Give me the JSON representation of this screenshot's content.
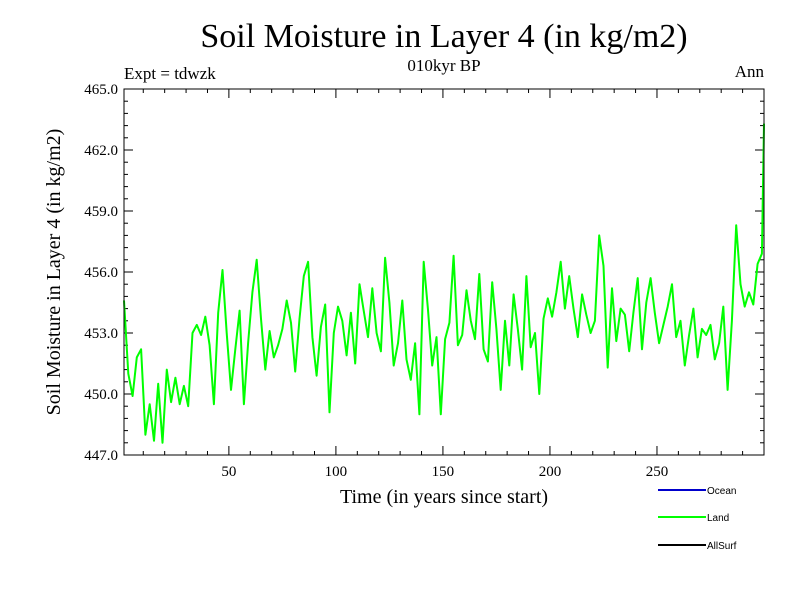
{
  "chart_data": {
    "type": "line",
    "title": "Soil Moisture in Layer 4 (in kg/m2)",
    "subtitle": "010kyr BP",
    "left_note": "Expt = tdwzk",
    "right_note": "Ann",
    "xlabel": "Time (in years since start)",
    "ylabel": "Soil Moisture in Layer 4 (in kg/m2)",
    "xlim": [
      1,
      300
    ],
    "ylim": [
      447.0,
      465.0
    ],
    "xticks": [
      50,
      100,
      150,
      200,
      250
    ],
    "xtick_labels": [
      "50",
      "100",
      "150",
      "200",
      "250"
    ],
    "yticks": [
      447.0,
      450.0,
      453.0,
      456.0,
      459.0,
      462.0,
      465.0
    ],
    "ytick_labels": [
      "447.0",
      "450.0",
      "453.0",
      "456.0",
      "459.0",
      "462.0",
      "465.0"
    ],
    "legend_position": "bottom-right",
    "legend": [
      {
        "name": "Ocean",
        "color": "#0000cc"
      },
      {
        "name": "Land",
        "color": "#00ff00"
      },
      {
        "name": "AllSurf",
        "color": "#000000"
      }
    ],
    "series": [
      {
        "name": "Land",
        "color": "#00ff00",
        "x": [
          1,
          3,
          5,
          7,
          9,
          11,
          13,
          15,
          17,
          19,
          21,
          23,
          25,
          27,
          29,
          31,
          33,
          35,
          37,
          39,
          41,
          43,
          45,
          47,
          49,
          51,
          53,
          55,
          57,
          59,
          61,
          63,
          65,
          67,
          69,
          71,
          73,
          75,
          77,
          79,
          81,
          83,
          85,
          87,
          89,
          91,
          93,
          95,
          97,
          99,
          101,
          103,
          105,
          107,
          109,
          111,
          113,
          115,
          117,
          119,
          121,
          123,
          125,
          127,
          129,
          131,
          133,
          135,
          137,
          139,
          141,
          143,
          145,
          147,
          149,
          151,
          153,
          155,
          157,
          159,
          161,
          163,
          165,
          167,
          169,
          171,
          173,
          175,
          177,
          179,
          181,
          183,
          185,
          187,
          189,
          191,
          193,
          195,
          197,
          199,
          201,
          203,
          205,
          207,
          209,
          211,
          213,
          215,
          217,
          219,
          221,
          223,
          225,
          227,
          229,
          231,
          233,
          235,
          237,
          239,
          241,
          243,
          245,
          247,
          249,
          251,
          253,
          255,
          257,
          259,
          261,
          263,
          265,
          267,
          269,
          271,
          273,
          275,
          277,
          279,
          281,
          283,
          285,
          287,
          289,
          291,
          293,
          295,
          297,
          299,
          300
        ],
        "values": [
          454.6,
          451.0,
          449.9,
          451.8,
          452.2,
          448.0,
          449.5,
          447.7,
          450.5,
          447.6,
          451.2,
          449.6,
          450.8,
          449.5,
          450.4,
          449.4,
          453.0,
          453.4,
          452.9,
          453.8,
          452.4,
          449.5,
          454.0,
          456.1,
          453.0,
          450.2,
          452.2,
          454.1,
          449.5,
          452.5,
          455.0,
          456.6,
          453.7,
          451.2,
          453.1,
          451.8,
          452.4,
          453.2,
          454.6,
          453.5,
          451.1,
          453.7,
          455.8,
          456.5,
          452.8,
          450.9,
          453.3,
          454.4,
          449.1,
          453.0,
          454.3,
          453.6,
          451.9,
          454.0,
          451.5,
          455.4,
          454.1,
          452.8,
          455.2,
          453.0,
          452.1,
          456.7,
          454.5,
          451.4,
          452.5,
          454.6,
          451.7,
          450.7,
          452.5,
          449.0,
          456.5,
          454.2,
          451.4,
          452.8,
          449.0,
          452.7,
          453.5,
          456.8,
          452.4,
          452.9,
          455.1,
          453.6,
          452.7,
          455.9,
          452.2,
          451.6,
          455.5,
          453.2,
          450.2,
          453.6,
          451.4,
          454.9,
          453.2,
          451.2,
          455.8,
          452.3,
          453.0,
          450.0,
          453.7,
          454.7,
          453.8,
          455.0,
          456.5,
          454.2,
          455.8,
          454.2,
          452.8,
          454.9,
          453.9,
          453.0,
          453.6,
          457.8,
          456.3,
          451.3,
          455.2,
          452.6,
          454.2,
          453.9,
          452.1,
          454.0,
          455.7,
          452.2,
          454.5,
          455.7,
          454.0,
          452.5,
          453.4,
          454.3,
          455.4,
          452.8,
          453.6,
          451.4,
          452.9,
          454.2,
          451.8,
          453.2,
          452.9,
          453.4,
          451.7,
          452.5,
          454.3,
          450.2,
          453.6,
          458.3,
          455.4,
          454.3,
          455.0,
          454.4,
          456.4,
          456.9,
          463.3
        ]
      }
    ]
  }
}
